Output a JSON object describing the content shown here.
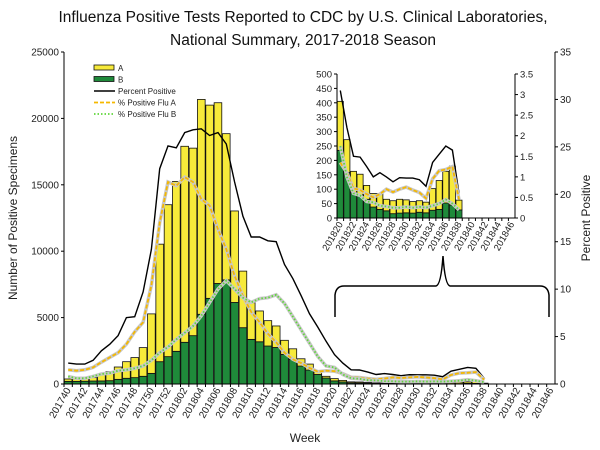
{
  "chart_data": {
    "type": "bar",
    "title": [
      "Influenza Positive Tests Reported to CDC by U.S. Clinical Laboratories,",
      "National Summary, 2017-2018 Season"
    ],
    "xlabel": "Week",
    "ylabel": "Number of Positive Specimens",
    "y2label": "Percent Positive",
    "ylim": [
      0,
      25000
    ],
    "y2lim": [
      0,
      35
    ],
    "yticks": [
      0,
      5000,
      10000,
      15000,
      20000,
      25000
    ],
    "y2ticks": [
      0,
      5,
      10,
      15,
      20,
      25,
      30,
      35
    ],
    "weeks": [
      "201740",
      "201741",
      "201742",
      "201743",
      "201744",
      "201745",
      "201746",
      "201747",
      "201748",
      "201749",
      "201750",
      "201751",
      "201752",
      "201801",
      "201802",
      "201803",
      "201804",
      "201805",
      "201806",
      "201807",
      "201808",
      "201809",
      "201810",
      "201811",
      "201812",
      "201813",
      "201814",
      "201815",
      "201816",
      "201817",
      "201818",
      "201819",
      "201820",
      "201821",
      "201822",
      "201823",
      "201824",
      "201825",
      "201826",
      "201827",
      "201828",
      "201829",
      "201830",
      "201831",
      "201832",
      "201833",
      "201834",
      "201835",
      "201836",
      "201837",
      "201838",
      "201839",
      "201840",
      "201841",
      "201842",
      "201843",
      "201844",
      "201845",
      "201846"
    ],
    "legend_position": "top-left",
    "series": [
      {
        "name": "A",
        "kind": "stacked-bar",
        "color": "#f7ea3a",
        "values": [
          177,
          177,
          220,
          255,
          520,
          680,
          930,
          1250,
          1510,
          2160,
          4480,
          8850,
          11440,
          12790,
          14760,
          14120,
          16180,
          14550,
          13610,
          11010,
          6890,
          4260,
          2760,
          2320,
          1910,
          1620,
          1060,
          800,
          550,
          450,
          300,
          130,
          170,
          114,
          74,
          72,
          48,
          47,
          55,
          40,
          45,
          48,
          45,
          40,
          40,
          37,
          75,
          100,
          110,
          135,
          34,
          null,
          null,
          null,
          null,
          null,
          null,
          null,
          null
        ]
      },
      {
        "name": "B",
        "kind": "stacked-bar",
        "color": "#1f8a3a",
        "values": [
          200,
          200,
          210,
          225,
          230,
          250,
          350,
          430,
          480,
          580,
          800,
          1680,
          2060,
          2460,
          3140,
          3640,
          5250,
          6450,
          7570,
          7840,
          6140,
          4240,
          3360,
          3180,
          2860,
          2750,
          2230,
          1850,
          1350,
          1050,
          720,
          450,
          235,
          158,
          88,
          80,
          65,
          38,
          30,
          25,
          15,
          17,
          18,
          17,
          20,
          18,
          27,
          30,
          52,
          45,
          28,
          null,
          null,
          null,
          null,
          null,
          null,
          null,
          null
        ]
      },
      {
        "name": "Percent Positive",
        "kind": "line",
        "axis": "right",
        "color": "#000000",
        "values": [
          2.2,
          2.1,
          2.1,
          2.5,
          3.5,
          4.2,
          5.1,
          7.0,
          7.1,
          9.7,
          14.2,
          22.7,
          25.1,
          24.9,
          26.5,
          26.8,
          26.9,
          26.2,
          26.5,
          25.3,
          21.3,
          17.7,
          15.5,
          15.5,
          15.1,
          15.0,
          12.6,
          11.1,
          9.3,
          7.4,
          6.0,
          4.5,
          3.1,
          2.2,
          1.5,
          1.48,
          1.25,
          1.0,
          1.1,
          1.0,
          0.88,
          0.98,
          0.97,
          0.97,
          0.93,
          0.77,
          1.35,
          1.55,
          1.75,
          1.65,
          0.6,
          null,
          null,
          null,
          null,
          null,
          null,
          null,
          null
        ]
      },
      {
        "name": "% Positive Flu A",
        "kind": "line",
        "axis": "right",
        "color": "#f5b800",
        "dash": "dashed",
        "values": [
          1.5,
          1.4,
          1.5,
          1.75,
          2.3,
          2.8,
          3.3,
          4.2,
          5.5,
          6.5,
          10.4,
          17.0,
          21.3,
          20.9,
          21.8,
          21.3,
          19.5,
          18.8,
          16.3,
          14.2,
          11.4,
          9.3,
          7.6,
          6.5,
          5.3,
          4.4,
          3.3,
          2.6,
          2.2,
          1.7,
          1.3,
          1.4,
          1.35,
          1.1,
          0.72,
          0.68,
          0.58,
          0.5,
          0.58,
          0.7,
          0.63,
          0.7,
          0.75,
          0.68,
          0.62,
          0.48,
          0.95,
          1.15,
          1.18,
          1.25,
          0.45,
          null,
          null,
          null,
          null,
          null,
          null,
          null,
          null
        ]
      },
      {
        "name": "% Positive Flu B",
        "kind": "line",
        "axis": "right",
        "color": "#5fd63a",
        "dash": "dotted",
        "values": [
          0.8,
          0.6,
          0.6,
          0.8,
          1.05,
          1.15,
          1.4,
          1.5,
          1.65,
          1.9,
          2.5,
          3.3,
          3.9,
          4.7,
          5.4,
          6.1,
          7.2,
          8.6,
          10.0,
          10.9,
          10.0,
          9.1,
          8.6,
          9.0,
          9.1,
          9.4,
          8.5,
          7.1,
          5.7,
          4.3,
          2.9,
          1.9,
          1.75,
          1.0,
          0.6,
          0.55,
          0.4,
          0.38,
          0.3,
          0.28,
          0.25,
          0.25,
          0.27,
          0.25,
          0.27,
          0.25,
          0.3,
          0.35,
          0.45,
          0.35,
          0.2,
          null,
          null,
          null,
          null,
          null,
          null,
          null,
          null
        ]
      }
    ],
    "inset": {
      "range": [
        "201820",
        "201846"
      ],
      "ylim": [
        0,
        500
      ],
      "yticks": [
        0,
        50,
        100,
        150,
        200,
        250,
        300,
        350,
        400,
        450,
        500
      ],
      "y2lim": [
        0,
        3.5
      ],
      "y2ticks": [
        "0",
        "0.5",
        "1",
        "1.5",
        "2",
        "2.5",
        "3",
        "3.5"
      ],
      "xticks": [
        "201820",
        "201822",
        "201824",
        "201826",
        "201828",
        "201830",
        "201832",
        "201834",
        "201836",
        "201838",
        "201840",
        "201842",
        "201844",
        "201846"
      ]
    }
  }
}
